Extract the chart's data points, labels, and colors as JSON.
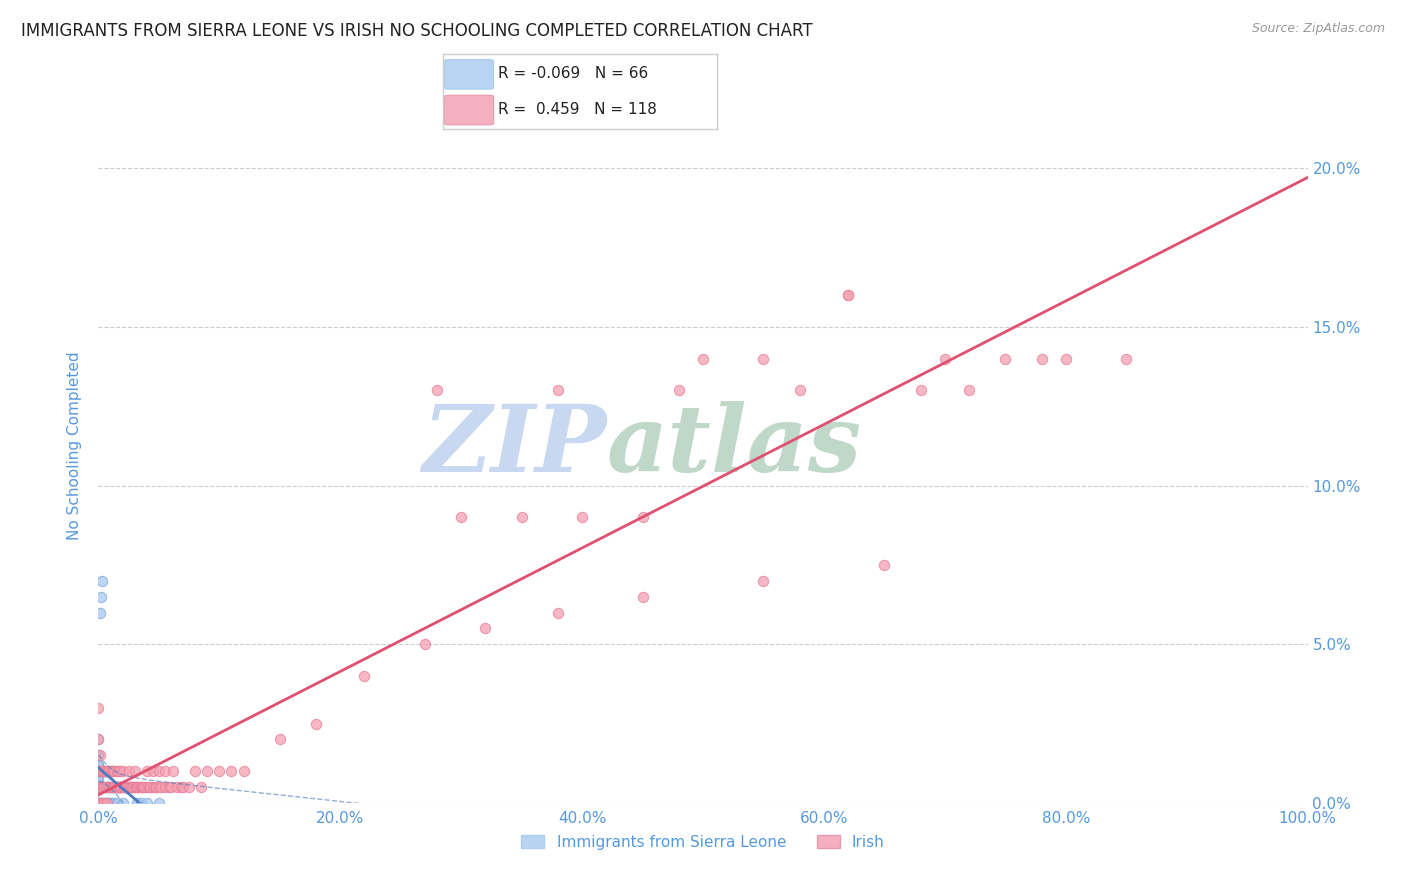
{
  "title": "IMMIGRANTS FROM SIERRA LEONE VS IRISH NO SCHOOLING COMPLETED CORRELATION CHART",
  "source": "Source: ZipAtlas.com",
  "ylabel": "No Schooling Completed",
  "series": [
    {
      "name": "Immigrants from Sierra Leone",
      "R": -0.069,
      "N": 66,
      "color": "#a8c8f0",
      "edge_color": "#7aabdb",
      "line_color": "#4a7abf",
      "x": [
        0.0,
        0.0,
        0.0,
        0.0,
        0.0,
        0.0,
        0.0,
        0.0,
        0.0,
        0.0,
        0.0,
        0.0,
        0.0,
        0.0,
        0.0,
        0.0,
        0.0,
        0.001,
        0.001,
        0.001,
        0.002,
        0.002,
        0.003,
        0.003,
        0.003,
        0.004,
        0.004,
        0.005,
        0.005,
        0.006,
        0.006,
        0.006,
        0.007,
        0.007,
        0.008,
        0.008,
        0.009,
        0.009,
        0.01,
        0.01,
        0.01,
        0.011,
        0.011,
        0.012,
        0.013,
        0.013,
        0.014,
        0.015,
        0.015,
        0.016,
        0.017,
        0.018,
        0.019,
        0.02,
        0.021,
        0.022,
        0.025,
        0.028,
        0.03,
        0.032,
        0.035,
        0.04,
        0.05,
        0.002,
        0.003,
        0.001
      ],
      "y": [
        0.0,
        0.0,
        0.0,
        0.005,
        0.005,
        0.007,
        0.008,
        0.01,
        0.01,
        0.01,
        0.01,
        0.01,
        0.012,
        0.012,
        0.015,
        0.015,
        0.02,
        0.0,
        0.005,
        0.01,
        0.0,
        0.005,
        0.0,
        0.005,
        0.01,
        0.005,
        0.01,
        0.0,
        0.01,
        0.0,
        0.005,
        0.01,
        0.0,
        0.005,
        0.0,
        0.005,
        0.0,
        0.005,
        0.0,
        0.005,
        0.01,
        0.005,
        0.01,
        0.005,
        0.0,
        0.005,
        0.005,
        0.0,
        0.005,
        0.005,
        0.005,
        0.005,
        0.005,
        0.0,
        0.005,
        0.005,
        0.005,
        0.005,
        0.005,
        0.0,
        0.0,
        0.0,
        0.0,
        0.065,
        0.07,
        0.06
      ]
    },
    {
      "name": "Irish",
      "R": 0.459,
      "N": 118,
      "color": "#f4a0b0",
      "edge_color": "#e8809a",
      "line_color": "#e05070",
      "x": [
        0.0,
        0.0,
        0.0,
        0.0,
        0.0,
        0.001,
        0.001,
        0.001,
        0.002,
        0.002,
        0.003,
        0.003,
        0.004,
        0.004,
        0.005,
        0.005,
        0.005,
        0.006,
        0.006,
        0.007,
        0.007,
        0.008,
        0.008,
        0.009,
        0.009,
        0.01,
        0.01,
        0.011,
        0.011,
        0.012,
        0.012,
        0.013,
        0.013,
        0.014,
        0.015,
        0.015,
        0.016,
        0.016,
        0.017,
        0.018,
        0.018,
        0.019,
        0.02,
        0.02,
        0.021,
        0.022,
        0.023,
        0.024,
        0.025,
        0.025,
        0.026,
        0.027,
        0.028,
        0.029,
        0.03,
        0.03,
        0.031,
        0.032,
        0.033,
        0.034,
        0.035,
        0.036,
        0.037,
        0.038,
        0.04,
        0.04,
        0.042,
        0.043,
        0.045,
        0.045,
        0.047,
        0.048,
        0.05,
        0.05,
        0.052,
        0.055,
        0.055,
        0.058,
        0.06,
        0.062,
        0.065,
        0.068,
        0.07,
        0.075,
        0.08,
        0.085,
        0.09,
        0.1,
        0.11,
        0.12,
        0.15,
        0.18,
        0.22,
        0.27,
        0.32,
        0.38,
        0.45,
        0.55,
        0.65,
        0.62,
        0.3,
        0.35,
        0.4,
        0.45,
        0.5,
        0.55,
        0.28,
        0.38,
        0.48,
        0.58,
        0.62,
        0.7,
        0.75,
        0.8,
        0.68,
        0.72,
        0.78,
        0.85
      ],
      "y": [
        0.0,
        0.005,
        0.01,
        0.02,
        0.03,
        0.0,
        0.005,
        0.015,
        0.005,
        0.01,
        0.0,
        0.01,
        0.005,
        0.01,
        0.0,
        0.005,
        0.01,
        0.005,
        0.01,
        0.0,
        0.01,
        0.005,
        0.01,
        0.005,
        0.01,
        0.005,
        0.01,
        0.005,
        0.01,
        0.005,
        0.01,
        0.005,
        0.01,
        0.005,
        0.005,
        0.01,
        0.005,
        0.01,
        0.005,
        0.005,
        0.01,
        0.005,
        0.005,
        0.01,
        0.005,
        0.005,
        0.005,
        0.005,
        0.005,
        0.01,
        0.005,
        0.005,
        0.005,
        0.005,
        0.005,
        0.01,
        0.005,
        0.005,
        0.005,
        0.005,
        0.005,
        0.005,
        0.005,
        0.005,
        0.005,
        0.01,
        0.005,
        0.005,
        0.005,
        0.01,
        0.005,
        0.005,
        0.005,
        0.01,
        0.005,
        0.005,
        0.01,
        0.005,
        0.005,
        0.01,
        0.005,
        0.005,
        0.005,
        0.005,
        0.01,
        0.005,
        0.01,
        0.01,
        0.01,
        0.01,
        0.02,
        0.025,
        0.04,
        0.05,
        0.055,
        0.06,
        0.065,
        0.07,
        0.075,
        0.16,
        0.09,
        0.09,
        0.09,
        0.09,
        0.14,
        0.14,
        0.13,
        0.13,
        0.13,
        0.13,
        0.16,
        0.14,
        0.14,
        0.14,
        0.13,
        0.13,
        0.14,
        0.14
      ]
    }
  ],
  "xlim": [
    0.0,
    1.0
  ],
  "ylim": [
    0.0,
    0.225
  ],
  "xtick_positions": [
    0.0,
    0.1,
    0.2,
    0.3,
    0.4,
    0.5,
    0.6,
    0.7,
    0.8,
    0.9,
    1.0
  ],
  "xticklabels": [
    "0.0%",
    "",
    "20.0%",
    "",
    "40.0%",
    "",
    "60.0%",
    "",
    "80.0%",
    "",
    "100.0%"
  ],
  "yticks": [
    0.0,
    0.05,
    0.1,
    0.15,
    0.2
  ],
  "yticklabels": [
    "0.0%",
    "5.0%",
    "10.0%",
    "15.0%",
    "20.0%"
  ],
  "watermark_zip": "ZIP",
  "watermark_atlas": "atlas",
  "watermark_color_zip": "#c8d8f0",
  "watermark_color_atlas": "#c0d8c8",
  "grid_color": "#cccccc",
  "background_color": "#ffffff",
  "title_fontsize": 12,
  "tick_color": "#5599dd",
  "legend_box_color_sierra": "#b8d4f0",
  "legend_box_color_irish": "#f4b0c0"
}
